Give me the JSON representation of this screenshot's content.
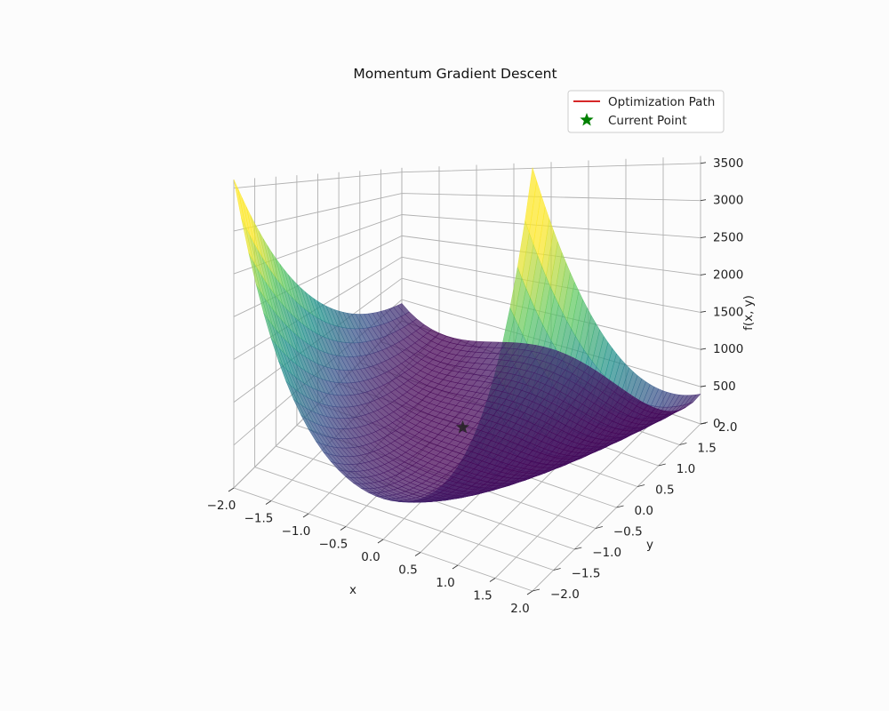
{
  "chart_data": {
    "type": "surface3d",
    "title": "Momentum Gradient Descent",
    "xlabel": "x",
    "ylabel": "y",
    "zlabel": "f(x, y)",
    "xlim": [
      -2,
      2
    ],
    "ylim": [
      -2,
      2
    ],
    "zlim": [
      0,
      3600
    ],
    "xticks": [
      "−2.0",
      "−1.5",
      "−1.0",
      "−0.5",
      "0.0",
      "0.5",
      "1.0",
      "1.5",
      "2.0"
    ],
    "yticks": [
      "−2.0",
      "−1.5",
      "−1.0",
      "−0.5",
      "0.0",
      "0.5",
      "1.0",
      "1.5",
      "2.0"
    ],
    "zticks": [
      "0",
      "500",
      "1000",
      "1500",
      "2000",
      "2500",
      "3000",
      "3500"
    ],
    "grid": true,
    "colormap": [
      "#440154",
      "#3b528b",
      "#21918c",
      "#5ec962",
      "#fde725"
    ],
    "surface_function": "rosenbrock: (1 - x)^2 + 100 (y - x^2)^2",
    "legend": {
      "placement": "top-right",
      "entries": [
        {
          "label": "Optimization Path",
          "marker": "line",
          "color": "#d62728"
        },
        {
          "label": "Current Point",
          "marker": "star",
          "color": "#008000"
        }
      ]
    },
    "current_point": {
      "x": 0.0,
      "y": 0.0,
      "z": 1
    },
    "optimization_path": []
  }
}
